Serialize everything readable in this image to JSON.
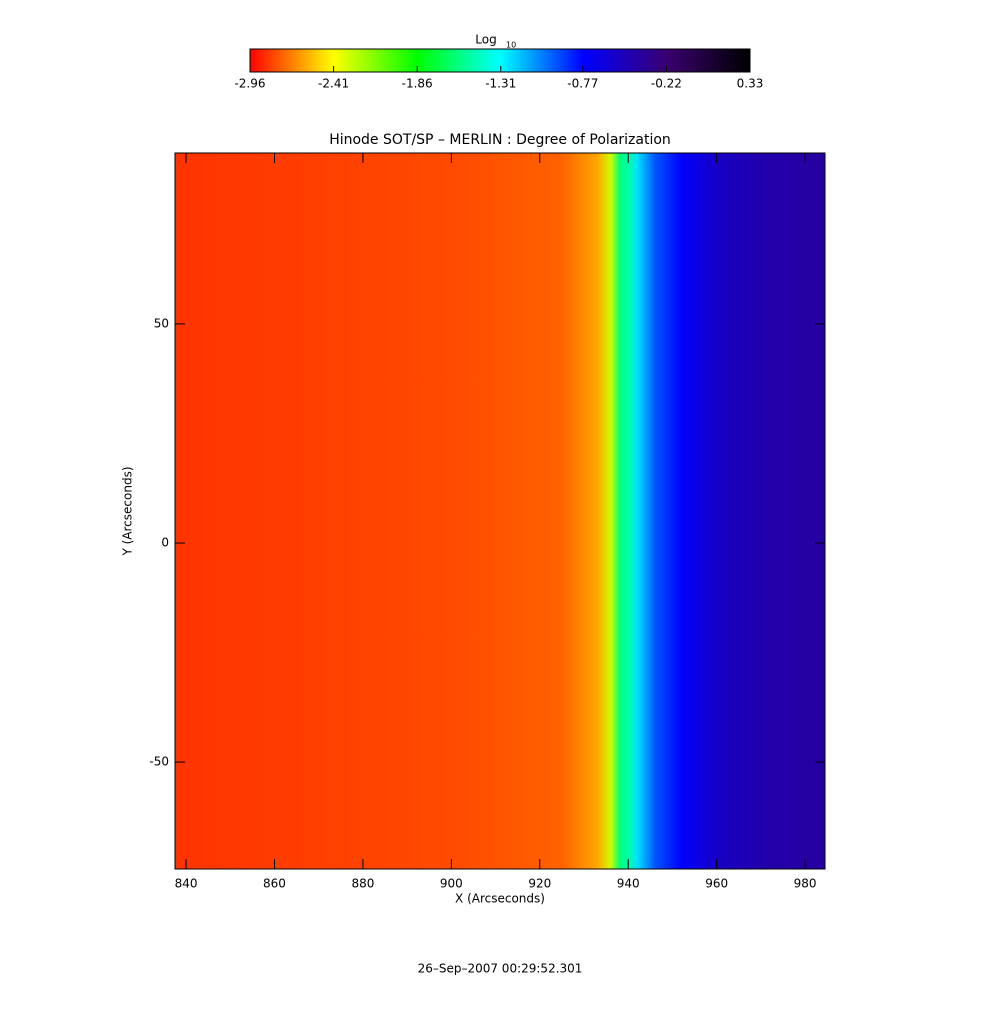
{
  "chart_data": {
    "type": "heatmap",
    "title": "Hinode SOT/SP – MERLIN : Degree of Polarization",
    "x_label": "X (Arcseconds)",
    "y_label": "Y (Arcseconds)",
    "footer": "26–Sep–2007 00:29:52.301",
    "colorbar": {
      "label": "Log",
      "label_subscript": "10",
      "clim": [
        -2.96,
        0.33
      ],
      "ticks": [
        -2.96,
        -2.41,
        -1.86,
        -1.31,
        -0.77,
        -0.22,
        0.33
      ],
      "colors": [
        "#ff0000",
        "#ffff00",
        "#00ff00",
        "#00ffff",
        "#0000ff",
        "#3a0070",
        "#000000"
      ]
    },
    "xlim": [
      837.5,
      984.5
    ],
    "ylim": [
      -74.4,
      89
    ],
    "xticks": [
      840,
      860,
      880,
      900,
      920,
      940,
      960,
      980
    ],
    "yticks": [
      -50,
      0,
      50
    ],
    "profile": {
      "x": [
        837.5,
        900,
        925,
        933,
        936,
        938,
        940,
        942,
        946,
        952,
        960,
        970,
        984.5
      ],
      "values": [
        -2.85,
        -2.8,
        -2.75,
        -2.6,
        -2.3,
        -1.6,
        -1.5,
        -1.25,
        -0.95,
        -0.75,
        -0.55,
        -0.45,
        -0.4
      ]
    }
  }
}
